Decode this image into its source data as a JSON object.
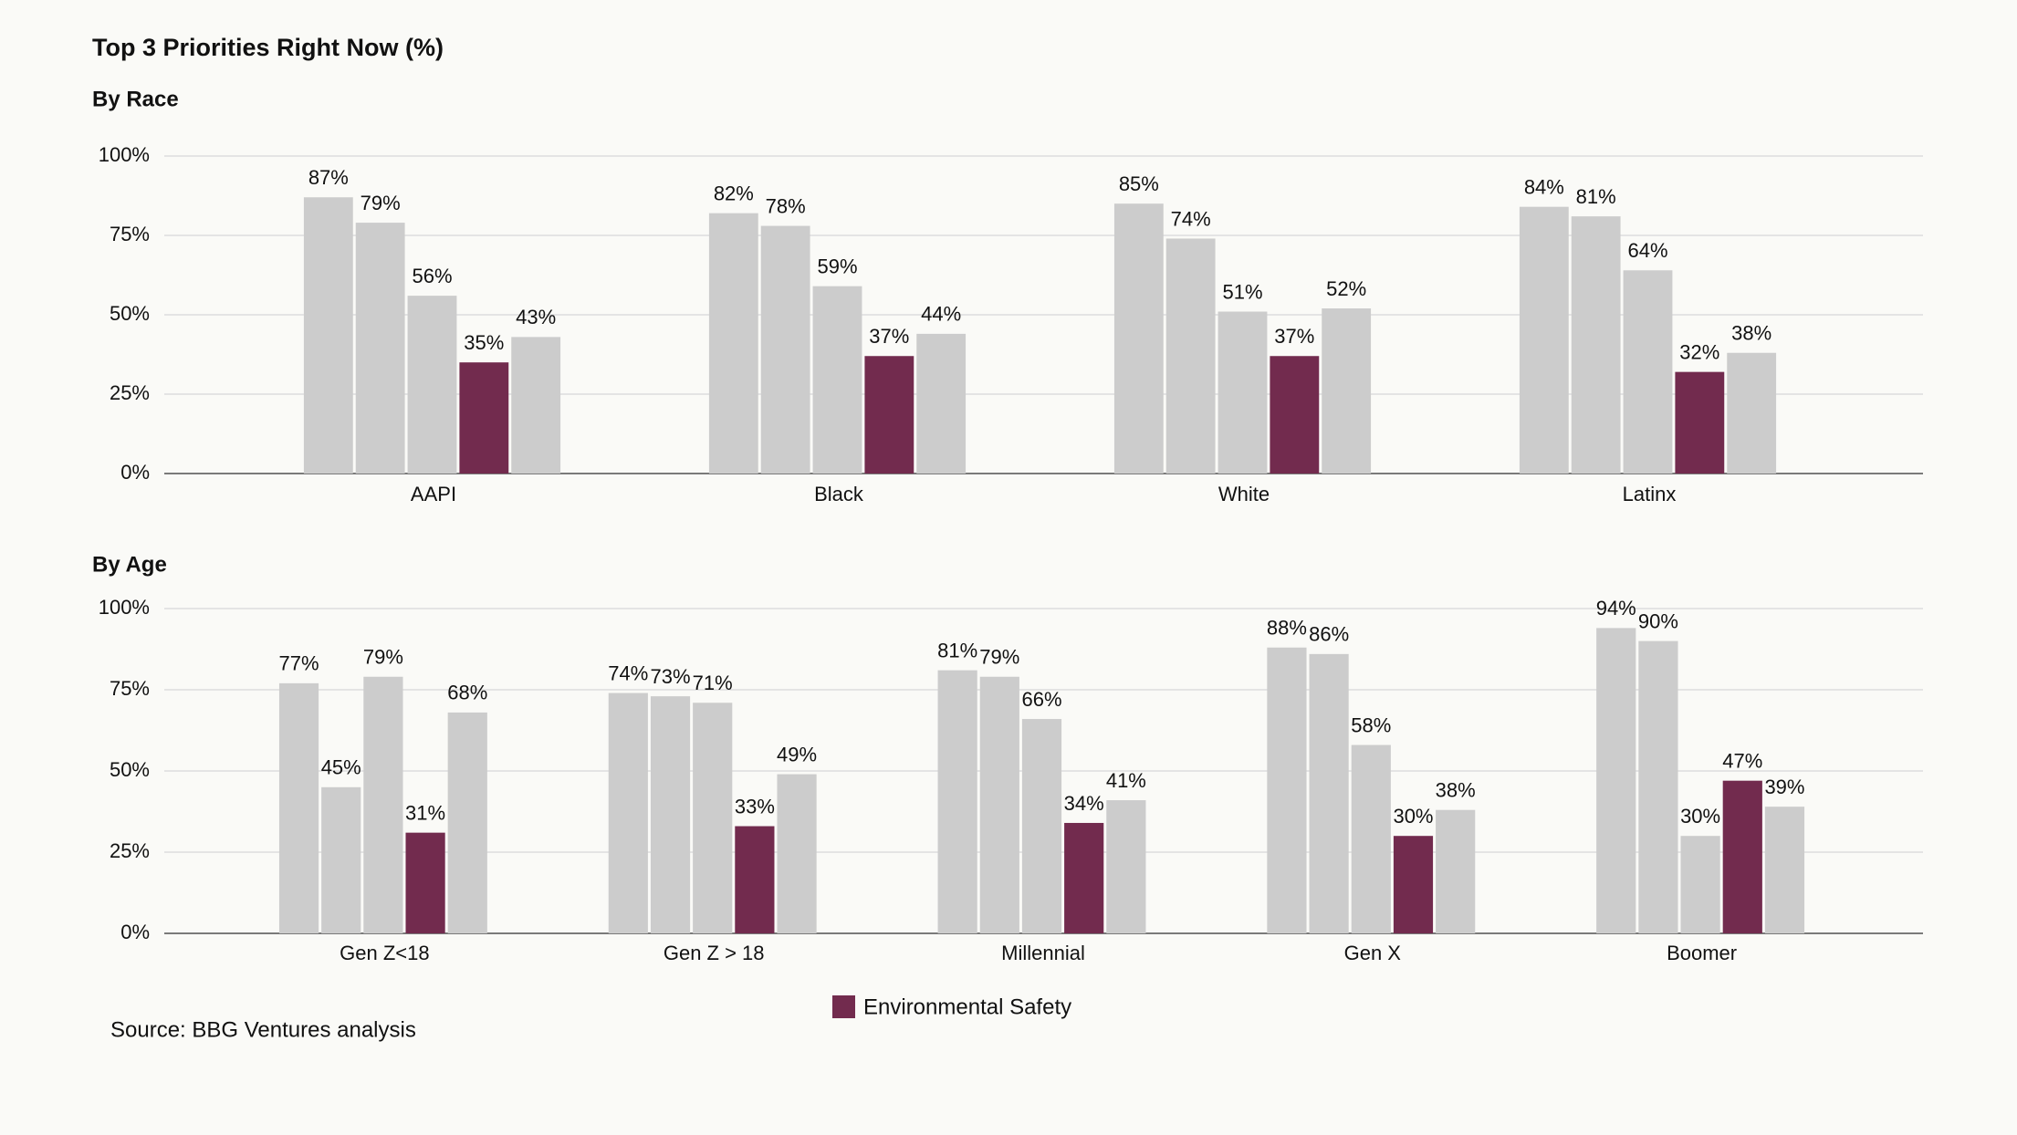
{
  "title": "Top 3 Priorities Right Now (%)",
  "source": "Source: BBG Ventures analysis",
  "chart_data": [
    {
      "type": "bar",
      "subtitle": "By Race",
      "categories": [
        "AAPI",
        "Black",
        "White",
        "Latinx"
      ],
      "ylim": [
        0,
        100
      ],
      "yticks": [
        {
          "value": 0,
          "label": "0%"
        },
        {
          "value": 25,
          "label": "25%"
        },
        {
          "value": 50,
          "label": "50%"
        },
        {
          "value": 75,
          "label": "75%"
        },
        {
          "value": 100,
          "label": "100%"
        }
      ],
      "grid": true,
      "series": [
        {
          "color": "#cccccc",
          "values": [
            87,
            82,
            85,
            84
          ],
          "value_labels": [
            "87%",
            "82%",
            "85%",
            "84%"
          ]
        },
        {
          "color": "#cccccc",
          "values": [
            79,
            78,
            74,
            81
          ],
          "value_labels": [
            "79%",
            "78%",
            "74%",
            "81%"
          ]
        },
        {
          "color": "#cccccc",
          "values": [
            56,
            59,
            51,
            64
          ],
          "value_labels": [
            "56%",
            "59%",
            "51%",
            "64%"
          ]
        },
        {
          "color": "#722b4e",
          "values": [
            35,
            37,
            37,
            32
          ],
          "value_labels": [
            "35%",
            "37%",
            "37%",
            "32%"
          ]
        },
        {
          "color": "#cccccc",
          "values": [
            43,
            44,
            52,
            38
          ],
          "value_labels": [
            "43%",
            "44%",
            "52%",
            "38%"
          ]
        }
      ]
    },
    {
      "type": "bar",
      "subtitle": "By Age",
      "categories": [
        "Gen Z<18",
        "Gen Z > 18",
        "Millennial",
        "Gen X",
        "Boomer"
      ],
      "ylim": [
        0,
        100
      ],
      "yticks": [
        {
          "value": 0,
          "label": "0%"
        },
        {
          "value": 25,
          "label": "25%"
        },
        {
          "value": 50,
          "label": "50%"
        },
        {
          "value": 75,
          "label": "75%"
        },
        {
          "value": 100,
          "label": "100%"
        }
      ],
      "grid": true,
      "series": [
        {
          "color": "#cccccc",
          "values": [
            77,
            74,
            81,
            88,
            94
          ],
          "value_labels": [
            "77%",
            "74%",
            "81%",
            "88%",
            "94%"
          ]
        },
        {
          "color": "#cccccc",
          "values": [
            45,
            73,
            79,
            86,
            90
          ],
          "value_labels": [
            "45%",
            "73%",
            "79%",
            "86%",
            "90%"
          ]
        },
        {
          "color": "#cccccc",
          "values": [
            79,
            71,
            66,
            58,
            30
          ],
          "value_labels": [
            "79%",
            "71%",
            "66%",
            "58%",
            "30%"
          ]
        },
        {
          "name": "Environmental Safety",
          "color": "#722b4e",
          "values": [
            31,
            33,
            34,
            30,
            47
          ],
          "value_labels": [
            "31%",
            "33%",
            "34%",
            "30%",
            "47%"
          ]
        },
        {
          "color": "#cccccc",
          "values": [
            68,
            49,
            41,
            38,
            39
          ],
          "value_labels": [
            "68%",
            "49%",
            "41%",
            "38%",
            "39%"
          ]
        }
      ]
    }
  ]
}
